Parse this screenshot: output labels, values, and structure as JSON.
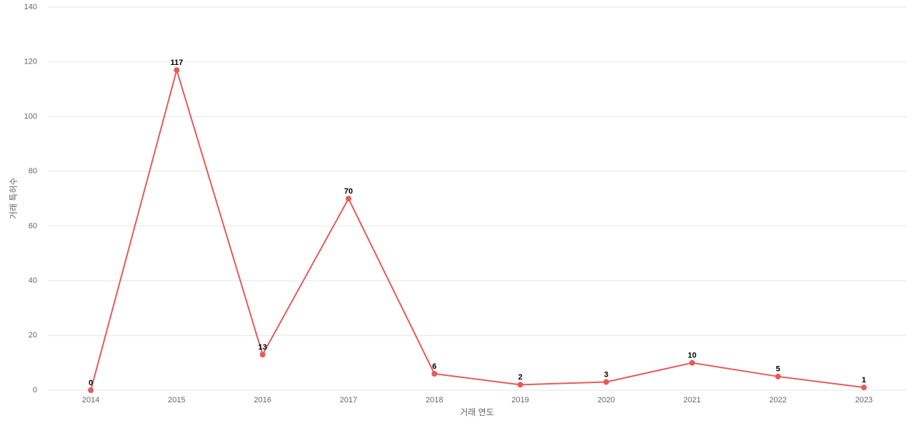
{
  "chart_data": {
    "type": "line",
    "x_label": "거래 연도",
    "y_label": "거래 특허수",
    "categories": [
      "2014",
      "2015",
      "2016",
      "2017",
      "2018",
      "2019",
      "2020",
      "2021",
      "2022",
      "2023"
    ],
    "series": [
      {
        "name": "거래 특허수",
        "color": "#e85a5a",
        "values": [
          0,
          117,
          13,
          70,
          6,
          2,
          3,
          10,
          5,
          1
        ]
      }
    ],
    "ylim": [
      0,
      140
    ],
    "yticks": [
      0,
      20,
      40,
      60,
      80,
      100,
      120,
      140
    ],
    "grid": true
  }
}
